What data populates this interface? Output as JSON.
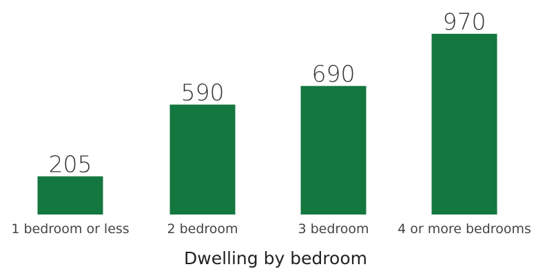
{
  "colors": {
    "bar": "#14773f",
    "background": "#ffffff"
  },
  "chart_data": {
    "type": "bar",
    "categories": [
      "1 bedroom or less",
      "2 bedroom",
      "3 bedroom",
      "4 or more bedrooms"
    ],
    "values": [
      205,
      590,
      690,
      970
    ],
    "value_labels": [
      "205",
      "590",
      "690",
      "970"
    ],
    "title": "",
    "xlabel": "Dwelling by bedroom",
    "ylabel": "",
    "ylim": [
      0,
      970
    ],
    "grid": false,
    "legend": "none"
  }
}
